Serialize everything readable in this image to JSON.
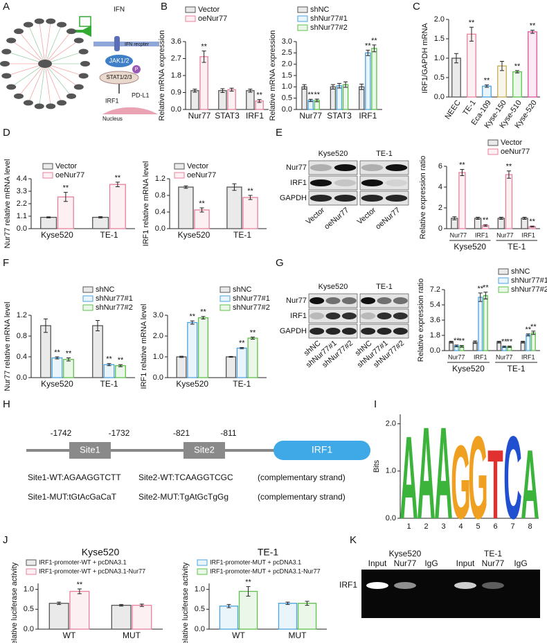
{
  "panel_letters": [
    "A",
    "B",
    "C",
    "D",
    "E",
    "F",
    "G",
    "H",
    "I",
    "J",
    "K"
  ],
  "diagram_a": {
    "ligand": "IFN",
    "receptor": "IFN recpter",
    "kinase": "JAK1/2",
    "phospho": "P",
    "stat": "STAT1/2/3",
    "gene": "IRF1",
    "target": "PD-L1",
    "nucleus": "Nucleus"
  },
  "blot_e": {
    "cells": [
      "Kyse520",
      "TE-1"
    ],
    "rows": [
      "Nur77",
      "IRF1",
      "GAPDH"
    ],
    "lanes": [
      "Vector",
      "oeNur77",
      "Vector",
      "oeNur77"
    ]
  },
  "blot_g": {
    "cells": [
      "Kyse520",
      "TE-1"
    ],
    "rows": [
      "Nur77",
      "IRF1",
      "GAPDH"
    ],
    "lanes": [
      "shNC",
      "shNur77#1",
      "shNur77#2",
      "shNC",
      "shNur77#1",
      "shNur77#2"
    ]
  },
  "promoter_h": {
    "positions": [
      "-1742",
      "-1732",
      "-821",
      "-811"
    ],
    "sites": [
      "Site1",
      "Site2"
    ],
    "gene": "IRF1",
    "rows": [
      [
        "Site1-WT:AGAAGGTCTT",
        "Site2-WT:TCAAGGTCGC",
        "(complementary strand)"
      ],
      [
        "Site1-MUT:tGtAcGaCaT",
        "Site2-MUT:TgAtGcTgGg",
        "(complementary strand)"
      ]
    ]
  },
  "gel_k": {
    "cells": [
      "Kyse520",
      "TE-1"
    ],
    "lanes": [
      "Input",
      "Nur77",
      "IgG",
      "Input",
      "Nur77",
      "IgG"
    ],
    "row": "IRF1"
  },
  "chart_data": [
    {
      "type": "bar",
      "ylabel": "Relative mRNA expression",
      "categories": [
        "Nur77",
        "STAT3",
        "IRF1"
      ],
      "ylim": [
        0,
        3.6
      ],
      "yticks": [
        {
          "value": 0,
          "label": "0.0"
        },
        0.9,
        1.8,
        2.7,
        3.6
      ],
      "series": [
        {
          "name": "Vector",
          "color": "#555555",
          "values": [
            1,
            1,
            1
          ],
          "errors": [
            0.08,
            0.1,
            0.08
          ],
          "stars": [
            null,
            null,
            null
          ]
        },
        {
          "name": "oeNur77",
          "color": "#e8809c",
          "values": [
            2.8,
            1.05,
            0.45
          ],
          "errors": [
            0.3,
            0.08,
            0.08
          ],
          "stars": [
            "**",
            null,
            "**"
          ]
        }
      ]
    },
    {
      "type": "bar",
      "ylabel": "Relative mRNA expression",
      "categories": [
        "Nur77",
        "STAT3",
        "IRF1"
      ],
      "ylim": [
        0,
        3
      ],
      "yticks": [
        {
          "value": 0,
          "label": "0.0"
        },
        0.5,
        {
          "value": 1,
          "label": "1.0"
        },
        1.5,
        {
          "value": 2,
          "label": "2.0"
        },
        2.5,
        {
          "value": 3,
          "label": "3.0"
        }
      ],
      "series": [
        {
          "name": "shNC",
          "color": "#555555",
          "values": [
            1,
            1,
            1
          ],
          "errors": [
            0.1,
            0.1,
            0.12
          ],
          "stars": [
            null,
            null,
            null
          ]
        },
        {
          "name": "shNur77#1",
          "color": "#4aa3df",
          "values": [
            0.4,
            1.05,
            2.5
          ],
          "errors": [
            0.05,
            0.1,
            0.12
          ],
          "stars": [
            "**",
            null,
            "**"
          ]
        },
        {
          "name": "shNur77#2",
          "color": "#5cc04a",
          "values": [
            0.4,
            1.1,
            2.7
          ],
          "errors": [
            0.06,
            0.12,
            0.15
          ],
          "stars": [
            "**",
            null,
            "**"
          ]
        }
      ]
    },
    {
      "type": "bar",
      "ylabel": "IRF1/GAPDH  mRNA",
      "categories": [
        "NEEC",
        "TE-1",
        "Eca-109",
        "Kyse-150",
        "Kyse-510",
        "Kyse-520"
      ],
      "ylim": [
        0,
        2
      ],
      "yticks": [
        {
          "value": 0,
          "label": "0.0"
        },
        0.5,
        {
          "value": 1,
          "label": "1.0"
        },
        1.5,
        {
          "value": 2,
          "label": "2.0"
        }
      ],
      "values": [
        1,
        1.62,
        0.28,
        0.8,
        0.65,
        1.68
      ],
      "errors": [
        0.12,
        0.18,
        0.03,
        0.12,
        0.03,
        0.04
      ],
      "stars": [
        null,
        "**",
        "**",
        null,
        "**",
        "**"
      ],
      "colors": [
        "#555555",
        "#e8809c",
        "#4aa3df",
        "#c2ad55",
        "#5cc04a",
        "#e0509a"
      ]
    },
    {
      "type": "bar",
      "ylabel": "Nur77 relative mRNA level",
      "categories": [
        "Kyse520",
        "TE-1"
      ],
      "ylim": [
        0,
        4.4
      ],
      "yticks": [
        {
          "value": 0,
          "label": "0.0"
        },
        1.1,
        2.2,
        3.3,
        4.4
      ],
      "series": [
        {
          "name": "Vector",
          "color": "#555555",
          "values": [
            1,
            1
          ],
          "errors": [
            0.05,
            0.06
          ],
          "stars": [
            null,
            null
          ]
        },
        {
          "name": "oeNur77",
          "color": "#e8809c",
          "values": [
            2.8,
            3.9
          ],
          "errors": [
            0.4,
            0.2
          ],
          "stars": [
            "**",
            "**"
          ]
        }
      ]
    },
    {
      "type": "bar",
      "ylabel": "IRF1 relative mRNA level",
      "categories": [
        "Kyse520",
        "TE-1"
      ],
      "ylim": [
        0,
        1.2
      ],
      "yticks": [
        {
          "value": 0,
          "label": "0.0"
        },
        0.4,
        0.8,
        1.2
      ],
      "series": [
        {
          "name": "Vector",
          "color": "#555555",
          "values": [
            1,
            1
          ],
          "errors": [
            0.03,
            0.08
          ],
          "stars": [
            null,
            null
          ]
        },
        {
          "name": "oeNur77",
          "color": "#e8809c",
          "values": [
            0.45,
            0.75
          ],
          "errors": [
            0.05,
            0.05
          ],
          "stars": [
            "**",
            "**"
          ]
        }
      ]
    },
    {
      "type": "bar",
      "ylabel": "Relative expression ratio",
      "categories": [
        "Nur77",
        "IRF1",
        "Nur77",
        "IRF1"
      ],
      "groups": [
        "Kyse520",
        "TE-1"
      ],
      "ylim": [
        0,
        6
      ],
      "yticks": [
        0,
        2,
        4,
        6
      ],
      "series": [
        {
          "name": "Vector",
          "color": "#555555",
          "values": [
            1,
            1,
            1,
            1
          ],
          "errors": [
            0.15,
            0.1,
            0.1,
            0.1
          ],
          "stars": [
            null,
            null,
            null,
            null
          ]
        },
        {
          "name": "oeNur77",
          "color": "#e8809c",
          "values": [
            5.4,
            0.3,
            5.2,
            0.2
          ],
          "errors": [
            0.3,
            0.08,
            0.35,
            0.05
          ],
          "stars": [
            "**",
            "**",
            "**",
            "**"
          ]
        }
      ]
    },
    {
      "type": "bar",
      "ylabel": "Nur77 relative mRNA level",
      "categories": [
        "Kyse520",
        "TE-1"
      ],
      "ylim": [
        0,
        1.2
      ],
      "yticks": [
        {
          "value": 0,
          "label": "0.0"
        },
        0.4,
        0.8,
        1.2
      ],
      "series": [
        {
          "name": "shNC",
          "color": "#555555",
          "values": [
            1,
            1
          ],
          "errors": [
            0.13,
            0.1
          ],
          "stars": [
            null,
            null
          ]
        },
        {
          "name": "shNur77#1",
          "color": "#4aa3df",
          "values": [
            0.38,
            0.25
          ],
          "errors": [
            0.02,
            0.02
          ],
          "stars": [
            "**",
            "**"
          ]
        },
        {
          "name": "shNur77#2",
          "color": "#5cc04a",
          "values": [
            0.35,
            0.23
          ],
          "errors": [
            0.03,
            0.02
          ],
          "stars": [
            "**",
            "**"
          ]
        }
      ]
    },
    {
      "type": "bar",
      "ylabel": "IRF1 relative mRNA level",
      "categories": [
        "Kyse520",
        "TE-1"
      ],
      "ylim": [
        0,
        3
      ],
      "yticks": [
        {
          "value": 0,
          "label": "0.0"
        },
        {
          "value": 1,
          "label": "1.0"
        },
        {
          "value": 2,
          "label": "2.0"
        },
        {
          "value": 3,
          "label": "3.0"
        }
      ],
      "series": [
        {
          "name": "shNC",
          "color": "#555555",
          "values": [
            1,
            1
          ],
          "errors": [
            0.03,
            0.02
          ],
          "stars": [
            null,
            null
          ]
        },
        {
          "name": "shNur77#1",
          "color": "#4aa3df",
          "values": [
            2.65,
            1.42
          ],
          "errors": [
            0.08,
            0.03
          ],
          "stars": [
            "**",
            "**"
          ]
        },
        {
          "name": "shNur77#2",
          "color": "#5cc04a",
          "values": [
            2.88,
            1.9
          ],
          "errors": [
            0.06,
            0.05
          ],
          "stars": [
            "**",
            "**"
          ]
        }
      ]
    },
    {
      "type": "bar",
      "ylabel": "Relative expression ratio",
      "categories": [
        "Nur77",
        "IRF1",
        "Nur77",
        "IRF1"
      ],
      "groups": [
        "Kyse520",
        "TE-1"
      ],
      "ylim": [
        0,
        7.2
      ],
      "yticks": [
        {
          "value": 0,
          "label": "0.0"
        },
        1.8,
        3.6,
        5.4,
        7.2
      ],
      "series": [
        {
          "name": "shNC",
          "color": "#555555",
          "values": [
            1,
            1,
            1,
            1
          ],
          "errors": [
            0.1,
            0.15,
            0.1,
            0.1
          ],
          "stars": [
            null,
            null,
            null,
            null
          ]
        },
        {
          "name": "shNur77#1",
          "color": "#4aa3df",
          "values": [
            0.55,
            6.3,
            0.45,
            1.85
          ],
          "errors": [
            0.1,
            0.5,
            0.08,
            0.12
          ],
          "stars": [
            "**",
            "**",
            "**",
            "**"
          ]
        },
        {
          "name": "shNur77#2",
          "color": "#5cc04a",
          "values": [
            0.5,
            6.5,
            0.45,
            2.1
          ],
          "errors": [
            0.1,
            0.4,
            0.08,
            0.2
          ],
          "stars": [
            "**",
            "**",
            "**",
            "**"
          ]
        }
      ]
    },
    {
      "type": "logo",
      "ylabel": "Bits",
      "x": [
        1,
        2,
        3,
        4,
        5,
        6,
        7,
        8
      ],
      "letters": [
        "A",
        "A",
        "A",
        "G",
        "G",
        "T",
        "C",
        "A"
      ],
      "values": [
        1.8,
        2,
        2,
        1.6,
        1.8,
        1.5,
        1.8,
        1.5
      ],
      "colors": [
        "#3cb43c",
        "#3cb43c",
        "#3cb43c",
        "#f0a020",
        "#f0a020",
        "#e03030",
        "#2050d0",
        "#3cb43c"
      ],
      "ylim": [
        0,
        2.2
      ],
      "yticks": [
        {
          "value": 0,
          "label": "0.0"
        },
        {
          "value": 1,
          "label": "1.0"
        },
        {
          "value": 2,
          "label": "2.0"
        }
      ]
    },
    {
      "type": "bar",
      "title": "Kyse520",
      "ylabel": "Relative luciferase activity",
      "categories": [
        "WT",
        "MUT"
      ],
      "ylim": [
        0,
        1.15
      ],
      "yticks": [
        {
          "value": 0,
          "label": "0.0"
        },
        0.5,
        {
          "value": 1,
          "label": "1.0"
        }
      ],
      "series": [
        {
          "name": "IRF1-promoter-WT + pcDNA3.1",
          "color": "#555555",
          "values": [
            0.65,
            0.6
          ],
          "errors": [
            0.03,
            0.02
          ],
          "stars": [
            null,
            null
          ]
        },
        {
          "name": "IRF1-promoter-WT + pcDNA3.1-Nur77",
          "color": "#e8809c",
          "values": [
            0.95,
            0.6
          ],
          "errors": [
            0.06,
            0.03
          ],
          "stars": [
            "**",
            null
          ]
        }
      ]
    },
    {
      "type": "bar",
      "title": "TE-1",
      "ylabel": "Relative luciferase activity",
      "categories": [
        "WT",
        "MUT"
      ],
      "ylim": [
        0,
        1.15
      ],
      "yticks": [
        {
          "value": 0,
          "label": "0.0"
        },
        0.5,
        {
          "value": 1,
          "label": "1.0"
        }
      ],
      "series": [
        {
          "name": "IRF1-promoter-MUT + pcDNA3.1",
          "color": "#4aa3df",
          "values": [
            0.58,
            0.65
          ],
          "errors": [
            0.04,
            0.03
          ],
          "stars": [
            null,
            null
          ]
        },
        {
          "name": "IRF1-promoter-MUT + pcDNA3.1-Nur77",
          "color": "#5cc04a",
          "values": [
            0.95,
            0.65
          ],
          "errors": [
            0.12,
            0.05
          ],
          "stars": [
            "**",
            null
          ]
        }
      ]
    }
  ]
}
